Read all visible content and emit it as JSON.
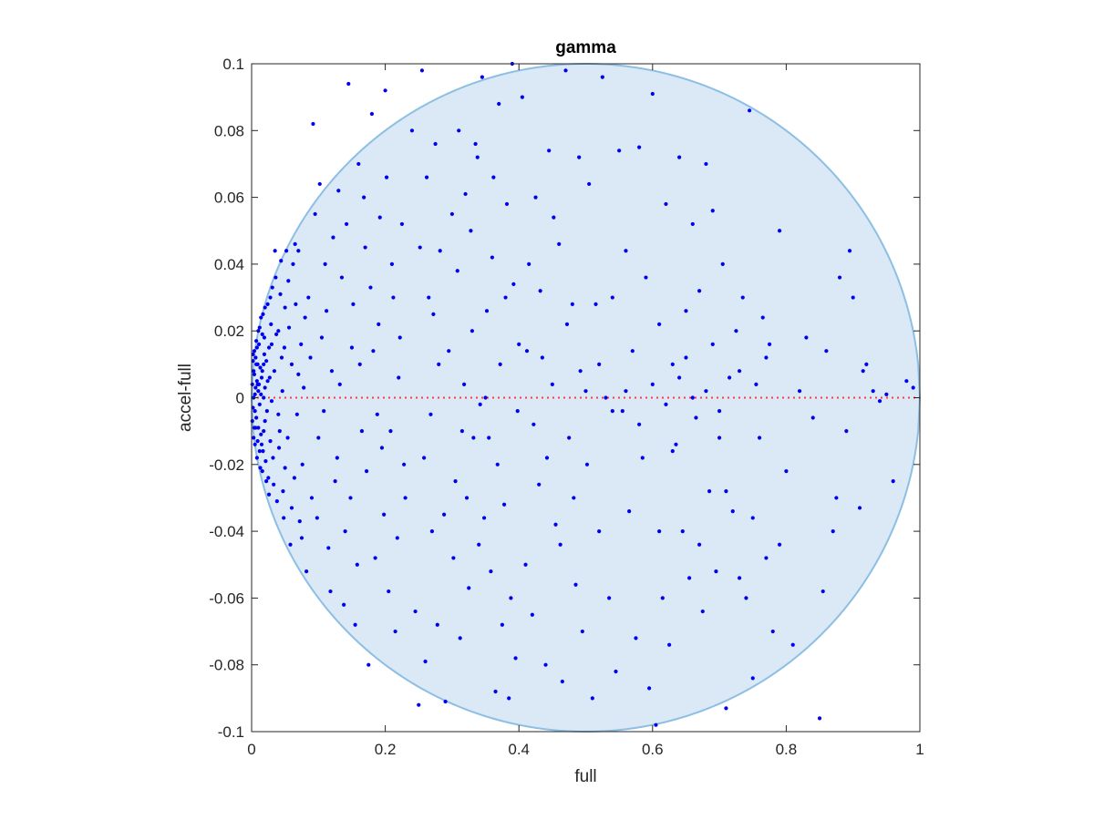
{
  "chart_data": {
    "type": "scatter",
    "title": "gamma",
    "xlabel": "full",
    "ylabel": "accel-full",
    "xlim": [
      0,
      1
    ],
    "ylim": [
      -0.1,
      0.1
    ],
    "xticks": [
      0,
      0.2,
      0.4,
      0.6,
      0.8,
      1
    ],
    "xtick_labels": [
      "0",
      "0.2",
      "0.4",
      "0.6",
      "0.8",
      "1"
    ],
    "yticks": [
      -0.1,
      -0.08,
      -0.06,
      -0.04,
      -0.02,
      0,
      0.02,
      0.04,
      0.06,
      0.08,
      0.1
    ],
    "ytick_labels": [
      "-0.1",
      "-0.08",
      "-0.06",
      "-0.04",
      "-0.02",
      "0",
      "0.02",
      "0.04",
      "0.06",
      "0.08",
      "0.1"
    ],
    "grid": false,
    "region": {
      "kind": "feasible-region",
      "boundary_relation": "(accel-full)^2 <= 4*full*(1-full)/s^2",
      "s": 10,
      "fill_color": "#dae9f5",
      "edge_color": "#8cbfe3"
    },
    "reference_line": {
      "y": 0,
      "color": "#ff3b3b",
      "style": "dotted"
    },
    "marker_color": "#0000f0",
    "points": [
      [
        0.001,
        0.004
      ],
      [
        0.002,
        -0.003
      ],
      [
        0.003,
        0.008
      ],
      [
        0.004,
        -0.009
      ],
      [
        0.005,
        0.001
      ],
      [
        0.006,
        0.012
      ],
      [
        0.007,
        -0.006
      ],
      [
        0.008,
        0.005
      ],
      [
        0.009,
        -0.013
      ],
      [
        0.01,
        0.002
      ],
      [
        0.011,
        0.016
      ],
      [
        0.012,
        -0.002
      ],
      [
        0.013,
        0.009
      ],
      [
        0.014,
        -0.011
      ],
      [
        0.015,
        0.006
      ],
      [
        0.016,
        0.019
      ],
      [
        0.017,
        -0.016
      ],
      [
        0.018,
        0.0
      ],
      [
        0.019,
        0.013
      ],
      [
        0.02,
        -0.007
      ],
      [
        0.002,
        0.011
      ],
      [
        0.003,
        -0.012
      ],
      [
        0.004,
        0.014
      ],
      [
        0.005,
        -0.004
      ],
      [
        0.006,
        0.003
      ],
      [
        0.007,
        0.017
      ],
      [
        0.008,
        -0.018
      ],
      [
        0.009,
        0.01
      ],
      [
        0.01,
        -0.009
      ],
      [
        0.011,
        0.004
      ],
      [
        0.012,
        0.021
      ],
      [
        0.013,
        -0.021
      ],
      [
        0.014,
        0.001
      ],
      [
        0.015,
        -0.014
      ],
      [
        0.016,
        0.008
      ],
      [
        0.017,
        0.025
      ],
      [
        0.018,
        -0.01
      ],
      [
        0.019,
        0.018
      ],
      [
        0.02,
        0.003
      ],
      [
        0.021,
        -0.019
      ],
      [
        0.022,
        0.011
      ],
      [
        0.023,
        -0.004
      ],
      [
        0.024,
        0.028
      ],
      [
        0.025,
        -0.024
      ],
      [
        0.026,
        0.015
      ],
      [
        0.027,
        0.006
      ],
      [
        0.028,
        -0.013
      ],
      [
        0.029,
        0.022
      ],
      [
        0.03,
        -0.001
      ],
      [
        0.031,
        0.033
      ],
      [
        0.001,
        -0.007
      ],
      [
        0.002,
        0.013
      ],
      [
        0.003,
        0.0
      ],
      [
        0.004,
        0.007
      ],
      [
        0.005,
        -0.014
      ],
      [
        0.006,
        -0.009
      ],
      [
        0.007,
        0.01
      ],
      [
        0.008,
        0.015
      ],
      [
        0.009,
        0.004
      ],
      [
        0.01,
        0.02
      ],
      [
        0.012,
        -0.016
      ],
      [
        0.014,
        0.024
      ],
      [
        0.016,
        -0.022
      ],
      [
        0.018,
        0.01
      ],
      [
        0.02,
        0.027
      ],
      [
        0.022,
        -0.025
      ],
      [
        0.024,
        0.005
      ],
      [
        0.026,
        -0.029
      ],
      [
        0.028,
        0.03
      ],
      [
        0.03,
        0.016
      ],
      [
        0.032,
        -0.018
      ],
      [
        0.034,
        0.008
      ],
      [
        0.036,
        0.036
      ],
      [
        0.038,
        -0.031
      ],
      [
        0.04,
        0.02
      ],
      [
        0.042,
        -0.01
      ],
      [
        0.044,
        0.041
      ],
      [
        0.046,
        0.002
      ],
      [
        0.048,
        -0.036
      ],
      [
        0.05,
        0.027
      ],
      [
        0.035,
        0.044
      ],
      [
        0.04,
        -0.005
      ],
      [
        0.045,
        0.012
      ],
      [
        0.05,
        -0.021
      ],
      [
        0.055,
        0.035
      ],
      [
        0.06,
        -0.033
      ],
      [
        0.065,
        0.046
      ],
      [
        0.07,
        0.007
      ],
      [
        0.075,
        -0.042
      ],
      [
        0.08,
        0.024
      ],
      [
        0.033,
        -0.026
      ],
      [
        0.037,
        0.019
      ],
      [
        0.041,
        -0.015
      ],
      [
        0.043,
        0.031
      ],
      [
        0.047,
        -0.028
      ],
      [
        0.049,
        0.015
      ],
      [
        0.052,
        0.044
      ],
      [
        0.054,
        -0.012
      ],
      [
        0.056,
        0.021
      ],
      [
        0.058,
        -0.044
      ],
      [
        0.06,
        0.01
      ],
      [
        0.062,
        0.04
      ],
      [
        0.064,
        -0.024
      ],
      [
        0.066,
        0.028
      ],
      [
        0.068,
        -0.005
      ],
      [
        0.07,
        0.044
      ],
      [
        0.072,
        -0.037
      ],
      [
        0.074,
        0.016
      ],
      [
        0.076,
        -0.02
      ],
      [
        0.078,
        0.003
      ],
      [
        0.085,
        0.03
      ],
      [
        0.09,
        -0.03
      ],
      [
        0.095,
        0.055
      ],
      [
        0.1,
        -0.012
      ],
      [
        0.105,
        0.018
      ],
      [
        0.11,
        0.04
      ],
      [
        0.115,
        -0.045
      ],
      [
        0.12,
        0.008
      ],
      [
        0.125,
        -0.025
      ],
      [
        0.13,
        0.062
      ],
      [
        0.082,
        -0.052
      ],
      [
        0.088,
        0.012
      ],
      [
        0.092,
        0.082
      ],
      [
        0.098,
        -0.036
      ],
      [
        0.102,
        0.064
      ],
      [
        0.108,
        -0.004
      ],
      [
        0.112,
        0.026
      ],
      [
        0.118,
        -0.058
      ],
      [
        0.122,
        0.048
      ],
      [
        0.128,
        -0.018
      ],
      [
        0.135,
        0.036
      ],
      [
        0.14,
        -0.04
      ],
      [
        0.145,
        0.094
      ],
      [
        0.15,
        0.015
      ],
      [
        0.155,
        -0.068
      ],
      [
        0.16,
        0.07
      ],
      [
        0.165,
        -0.01
      ],
      [
        0.17,
        0.045
      ],
      [
        0.175,
        -0.08
      ],
      [
        0.18,
        0.085
      ],
      [
        0.132,
        0.004
      ],
      [
        0.138,
        -0.062
      ],
      [
        0.142,
        0.052
      ],
      [
        0.148,
        -0.03
      ],
      [
        0.152,
        0.028
      ],
      [
        0.158,
        -0.05
      ],
      [
        0.162,
        0.01
      ],
      [
        0.168,
        0.06
      ],
      [
        0.172,
        -0.022
      ],
      [
        0.178,
        0.033
      ],
      [
        0.185,
        -0.048
      ],
      [
        0.19,
        0.022
      ],
      [
        0.195,
        -0.015
      ],
      [
        0.2,
        0.092
      ],
      [
        0.205,
        -0.058
      ],
      [
        0.21,
        0.04
      ],
      [
        0.215,
        -0.07
      ],
      [
        0.22,
        0.006
      ],
      [
        0.225,
        0.052
      ],
      [
        0.23,
        -0.03
      ],
      [
        0.182,
        0.014
      ],
      [
        0.188,
        -0.005
      ],
      [
        0.192,
        0.054
      ],
      [
        0.198,
        -0.035
      ],
      [
        0.202,
        0.066
      ],
      [
        0.208,
        -0.01
      ],
      [
        0.212,
        0.03
      ],
      [
        0.218,
        -0.042
      ],
      [
        0.222,
        0.018
      ],
      [
        0.228,
        -0.02
      ],
      [
        0.24,
        0.08
      ],
      [
        0.25,
        -0.092
      ],
      [
        0.255,
        0.098
      ],
      [
        0.26,
        -0.079
      ],
      [
        0.265,
        0.03
      ],
      [
        0.27,
        -0.04
      ],
      [
        0.275,
        0.076
      ],
      [
        0.28,
        0.01
      ],
      [
        0.29,
        -0.091
      ],
      [
        0.3,
        0.055
      ],
      [
        0.305,
        -0.025
      ],
      [
        0.31,
        0.08
      ],
      [
        0.315,
        -0.01
      ],
      [
        0.32,
        0.061
      ],
      [
        0.325,
        -0.057
      ],
      [
        0.33,
        0.02
      ],
      [
        0.335,
        0.076
      ],
      [
        0.34,
        -0.044
      ],
      [
        0.345,
        0.096
      ],
      [
        0.35,
        0.0
      ],
      [
        0.355,
        -0.012
      ],
      [
        0.36,
        0.042
      ],
      [
        0.365,
        -0.088
      ],
      [
        0.37,
        0.088
      ],
      [
        0.375,
        -0.068
      ],
      [
        0.38,
        0.03
      ],
      [
        0.385,
        -0.09
      ],
      [
        0.39,
        0.1
      ],
      [
        0.395,
        -0.078
      ],
      [
        0.4,
        0.016
      ],
      [
        0.245,
        -0.064
      ],
      [
        0.252,
        0.045
      ],
      [
        0.258,
        -0.018
      ],
      [
        0.262,
        0.066
      ],
      [
        0.268,
        -0.005
      ],
      [
        0.272,
        0.025
      ],
      [
        0.278,
        -0.068
      ],
      [
        0.282,
        0.044
      ],
      [
        0.288,
        -0.035
      ],
      [
        0.295,
        0.014
      ],
      [
        0.302,
        -0.048
      ],
      [
        0.308,
        0.038
      ],
      [
        0.312,
        -0.072
      ],
      [
        0.318,
        0.004
      ],
      [
        0.322,
        -0.03
      ],
      [
        0.328,
        0.05
      ],
      [
        0.332,
        -0.012
      ],
      [
        0.338,
        0.072
      ],
      [
        0.342,
        -0.002
      ],
      [
        0.348,
        -0.036
      ],
      [
        0.352,
        0.026
      ],
      [
        0.358,
        -0.052
      ],
      [
        0.362,
        0.066
      ],
      [
        0.368,
        -0.02
      ],
      [
        0.372,
        0.01
      ],
      [
        0.378,
        -0.032
      ],
      [
        0.382,
        0.058
      ],
      [
        0.388,
        -0.06
      ],
      [
        0.392,
        0.034
      ],
      [
        0.398,
        -0.004
      ],
      [
        0.405,
        0.09
      ],
      [
        0.41,
        -0.05
      ],
      [
        0.415,
        0.04
      ],
      [
        0.42,
        -0.065
      ],
      [
        0.425,
        0.06
      ],
      [
        0.43,
        -0.026
      ],
      [
        0.435,
        0.012
      ],
      [
        0.44,
        -0.08
      ],
      [
        0.445,
        0.074
      ],
      [
        0.45,
        0.004
      ],
      [
        0.455,
        -0.038
      ],
      [
        0.46,
        0.046
      ],
      [
        0.465,
        -0.085
      ],
      [
        0.47,
        0.098
      ],
      [
        0.475,
        -0.012
      ],
      [
        0.48,
        0.028
      ],
      [
        0.485,
        -0.056
      ],
      [
        0.49,
        0.072
      ],
      [
        0.495,
        -0.07
      ],
      [
        0.5,
        0.002
      ],
      [
        0.412,
        0.014
      ],
      [
        0.422,
        -0.008
      ],
      [
        0.432,
        0.032
      ],
      [
        0.442,
        -0.018
      ],
      [
        0.452,
        0.054
      ],
      [
        0.462,
        -0.044
      ],
      [
        0.472,
        0.022
      ],
      [
        0.482,
        -0.03
      ],
      [
        0.492,
        0.008
      ],
      [
        0.502,
        -0.02
      ],
      [
        0.505,
        0.064
      ],
      [
        0.51,
        -0.09
      ],
      [
        0.515,
        0.028
      ],
      [
        0.52,
        -0.04
      ],
      [
        0.525,
        0.096
      ],
      [
        0.53,
        0.0
      ],
      [
        0.535,
        -0.06
      ],
      [
        0.54,
        0.03
      ],
      [
        0.545,
        -0.082
      ],
      [
        0.55,
        0.074
      ],
      [
        0.555,
        -0.004
      ],
      [
        0.56,
        0.044
      ],
      [
        0.565,
        -0.034
      ],
      [
        0.57,
        0.014
      ],
      [
        0.575,
        -0.072
      ],
      [
        0.58,
        0.075
      ],
      [
        0.585,
        -0.018
      ],
      [
        0.59,
        0.036
      ],
      [
        0.595,
        -0.087
      ],
      [
        0.6,
        0.091
      ],
      [
        0.605,
        -0.098
      ],
      [
        0.61,
        0.022
      ],
      [
        0.615,
        -0.06
      ],
      [
        0.62,
        0.058
      ],
      [
        0.625,
        -0.074
      ],
      [
        0.63,
        0.01
      ],
      [
        0.635,
        -0.014
      ],
      [
        0.64,
        0.072
      ],
      [
        0.645,
        -0.04
      ],
      [
        0.65,
        0.026
      ],
      [
        0.655,
        -0.054
      ],
      [
        0.66,
        0.052
      ],
      [
        0.665,
        -0.006
      ],
      [
        0.67,
        0.032
      ],
      [
        0.675,
        -0.064
      ],
      [
        0.68,
        0.07
      ],
      [
        0.685,
        -0.028
      ],
      [
        0.69,
        0.016
      ],
      [
        0.695,
        -0.052
      ],
      [
        0.7,
        -0.012
      ],
      [
        0.705,
        0.04
      ],
      [
        0.71,
        -0.093
      ],
      [
        0.715,
        0.006
      ],
      [
        0.72,
        -0.034
      ],
      [
        0.725,
        0.02
      ],
      [
        0.73,
        -0.054
      ],
      [
        0.735,
        0.03
      ],
      [
        0.74,
        -0.06
      ],
      [
        0.745,
        0.086
      ],
      [
        0.75,
        -0.084
      ],
      [
        0.755,
        0.004
      ],
      [
        0.76,
        -0.012
      ],
      [
        0.765,
        0.024
      ],
      [
        0.77,
        -0.048
      ],
      [
        0.775,
        0.016
      ],
      [
        0.78,
        -0.07
      ],
      [
        0.79,
        0.05
      ],
      [
        0.8,
        -0.022
      ],
      [
        0.81,
        -0.074
      ],
      [
        0.82,
        0.002
      ],
      [
        0.83,
        0.018
      ],
      [
        0.84,
        -0.006
      ],
      [
        0.85,
        -0.096
      ],
      [
        0.86,
        0.014
      ],
      [
        0.87,
        -0.04
      ],
      [
        0.88,
        0.036
      ],
      [
        0.89,
        -0.01
      ],
      [
        0.9,
        0.03
      ],
      [
        0.91,
        -0.033
      ],
      [
        0.92,
        0.01
      ],
      [
        0.93,
        0.002
      ],
      [
        0.94,
        -0.001
      ],
      [
        0.95,
        0.001
      ],
      [
        0.96,
        -0.025
      ],
      [
        0.98,
        0.005
      ],
      [
        0.99,
        0.003
      ],
      [
        0.855,
        -0.058
      ],
      [
        0.875,
        -0.03
      ],
      [
        0.895,
        0.044
      ],
      [
        0.915,
        0.008
      ],
      [
        0.52,
        0.01
      ],
      [
        0.54,
        -0.004
      ],
      [
        0.56,
        0.002
      ],
      [
        0.58,
        -0.008
      ],
      [
        0.6,
        0.004
      ],
      [
        0.62,
        -0.002
      ],
      [
        0.64,
        0.006
      ],
      [
        0.66,
        0.0
      ],
      [
        0.68,
        0.002
      ],
      [
        0.7,
        -0.004
      ],
      [
        0.61,
        -0.04
      ],
      [
        0.63,
        -0.016
      ],
      [
        0.65,
        0.012
      ],
      [
        0.67,
        -0.044
      ],
      [
        0.69,
        0.056
      ],
      [
        0.71,
        -0.028
      ],
      [
        0.73,
        0.008
      ],
      [
        0.75,
        -0.036
      ],
      [
        0.77,
        0.012
      ],
      [
        0.79,
        -0.044
      ]
    ]
  }
}
